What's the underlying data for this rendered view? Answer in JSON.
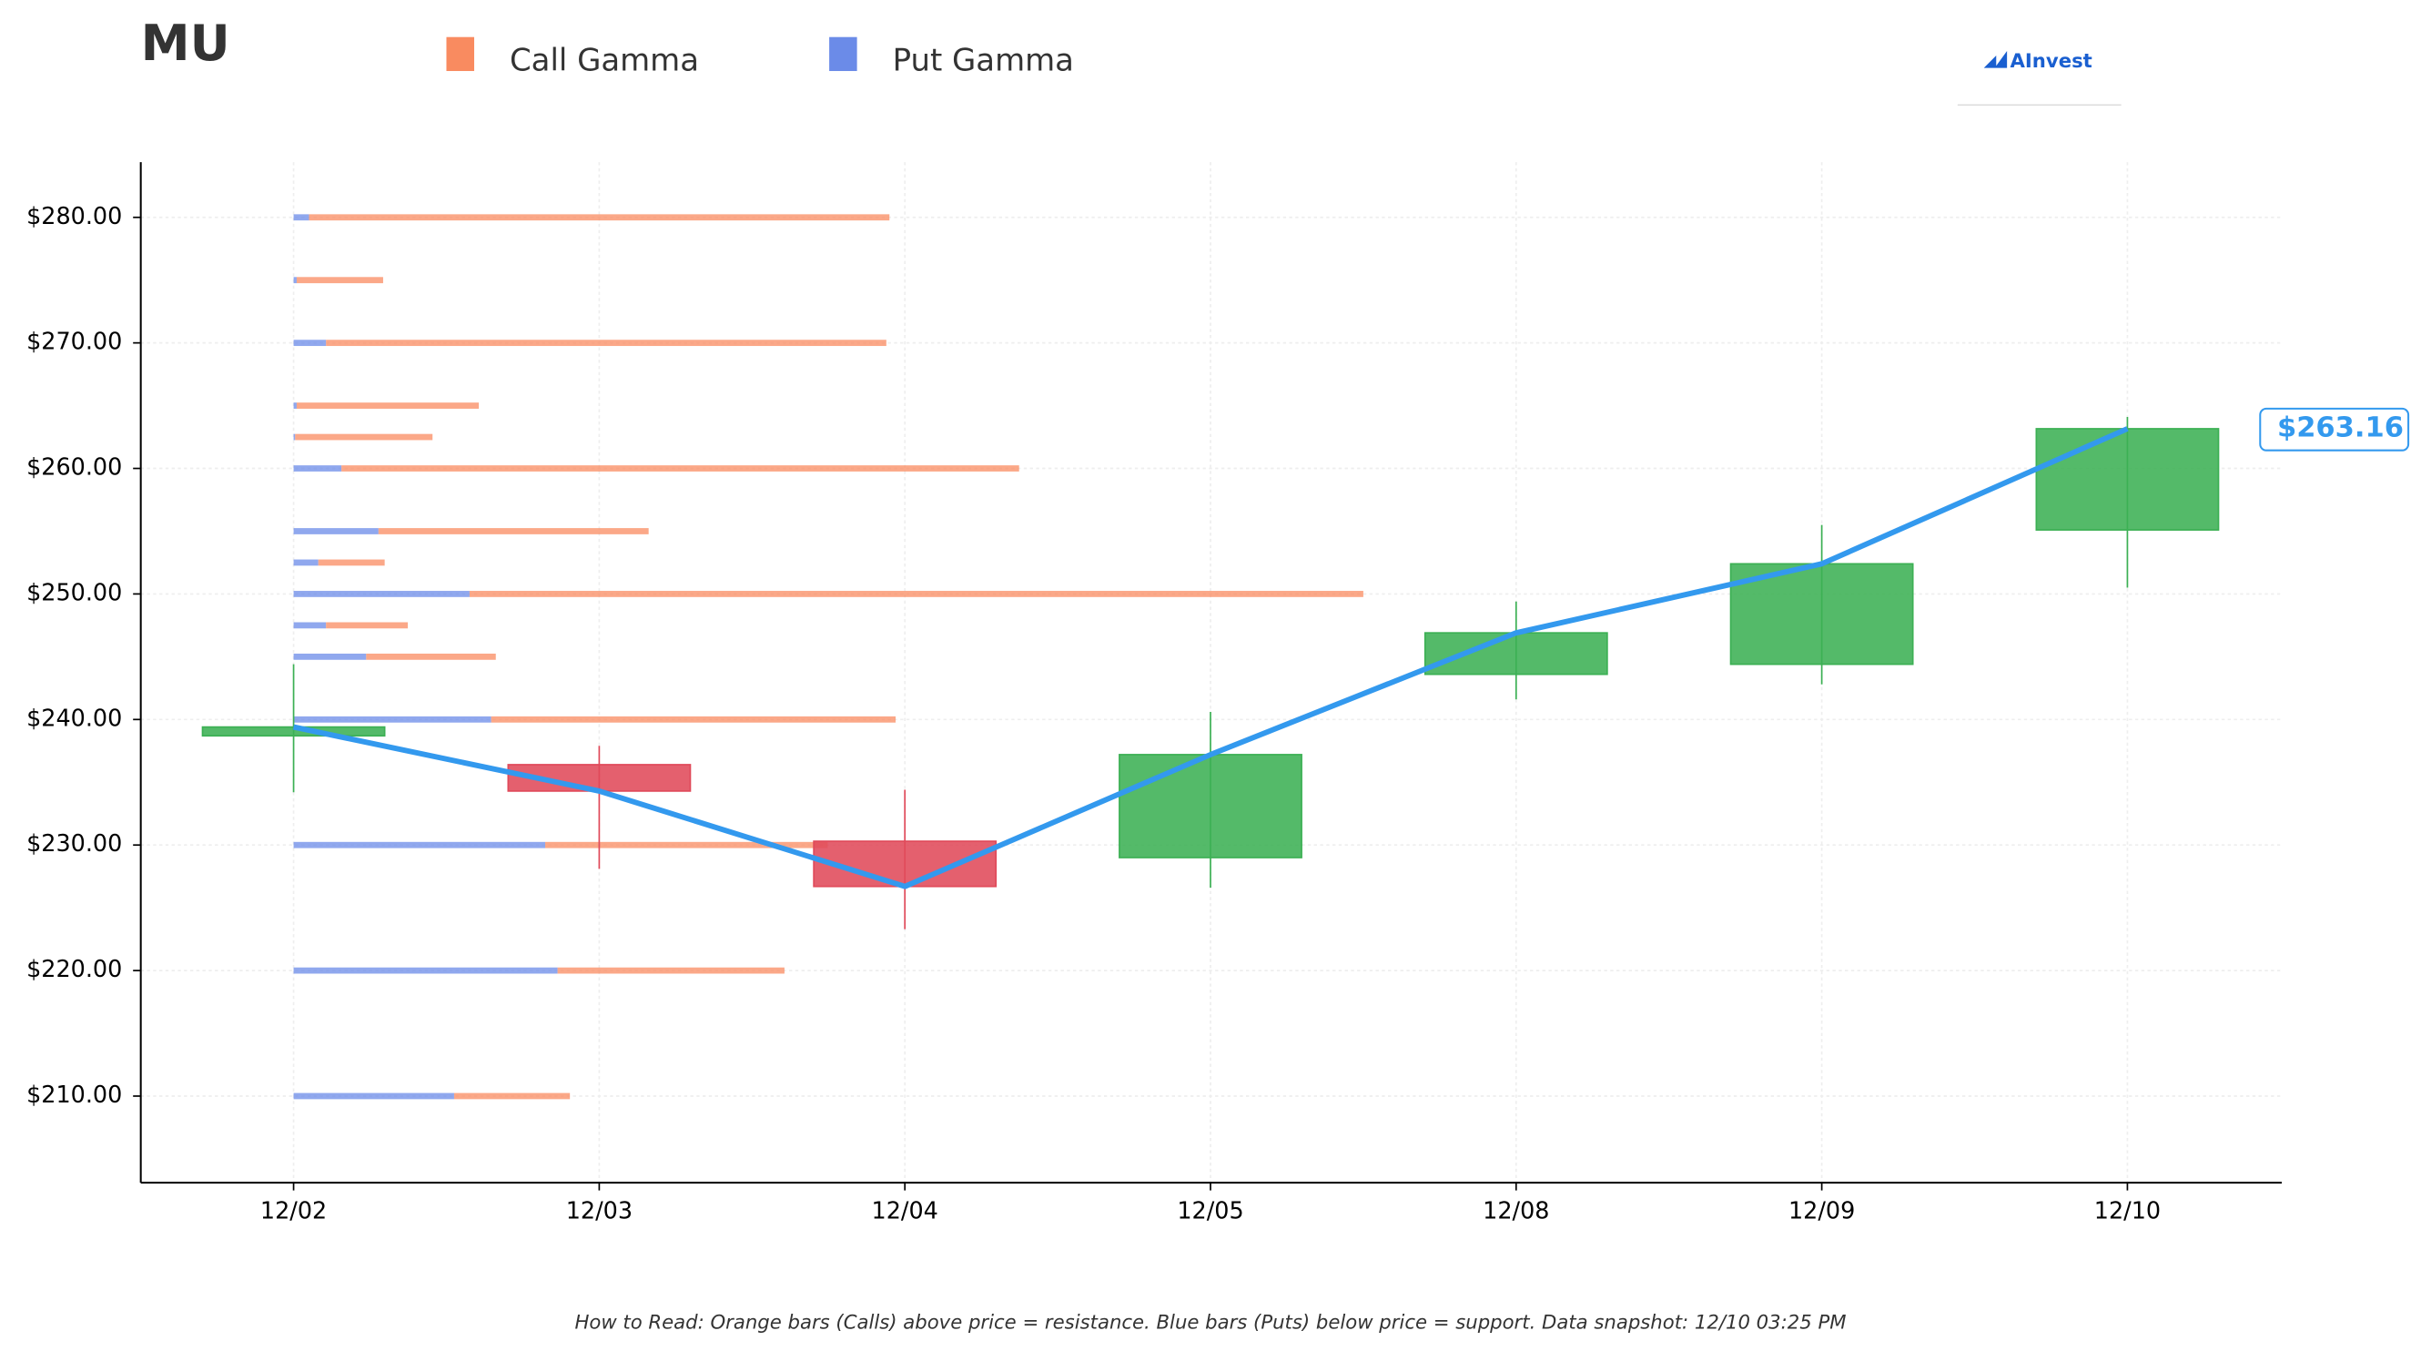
{
  "chart_data": {
    "type": "candlestick",
    "title": "MU",
    "logo": "AInvest",
    "footnote": "How to Read: Orange bars (Calls) above price = resistance. Blue bars (Puts) below price = support. Data snapshot: 12/10 03:25 PM",
    "last_price_label": "$263.16",
    "categories": [
      "12/02",
      "12/03",
      "12/04",
      "12/05",
      "12/08",
      "12/09",
      "12/10"
    ],
    "open": [
      238.7,
      236.4,
      230.3,
      229.0,
      243.6,
      244.4,
      255.1
    ],
    "high": [
      244.4,
      237.9,
      234.4,
      240.6,
      249.4,
      255.5,
      264.1
    ],
    "low": [
      234.2,
      228.1,
      223.3,
      226.6,
      241.6,
      242.8,
      250.5
    ],
    "close": [
      239.4,
      234.3,
      226.7,
      237.2,
      246.9,
      252.4,
      263.16
    ],
    "up_color": "#3cb054",
    "down_color": "#e04a5a",
    "line_color": "#3399ee",
    "ylim": [
      203.1,
      284.4
    ],
    "yticks": [
      {
        "value": 210,
        "label": "$210.00"
      },
      {
        "value": 220,
        "label": "$220.00"
      },
      {
        "value": 230,
        "label": "$230.00"
      },
      {
        "value": 240,
        "label": "$240.00"
      },
      {
        "value": 250,
        "label": "$250.00"
      },
      {
        "value": 260,
        "label": "$260.00"
      },
      {
        "value": 270,
        "label": "$270.00"
      },
      {
        "value": 280,
        "label": "$280.00"
      }
    ],
    "grid": true,
    "gamma": {
      "xlim": [
        0,
        1288
      ],
      "strikes": [
        280,
        275,
        270,
        265,
        262.5,
        260,
        255,
        252.5,
        250,
        247.5,
        245,
        240,
        230,
        220,
        210
      ],
      "series": [
        {
          "name": "Put Gamma",
          "color": "#6b8be8",
          "values": [
            10,
            2,
            21,
            2,
            1,
            31,
            55,
            16,
            114,
            21,
            47,
            128,
            163,
            171,
            104
          ]
        },
        {
          "name": "Call Gamma",
          "color": "#f98b60",
          "values": [
            376,
            56,
            363,
            118,
            89,
            439,
            175,
            43,
            579,
            53,
            84,
            262,
            183,
            147,
            75
          ]
        }
      ]
    }
  }
}
